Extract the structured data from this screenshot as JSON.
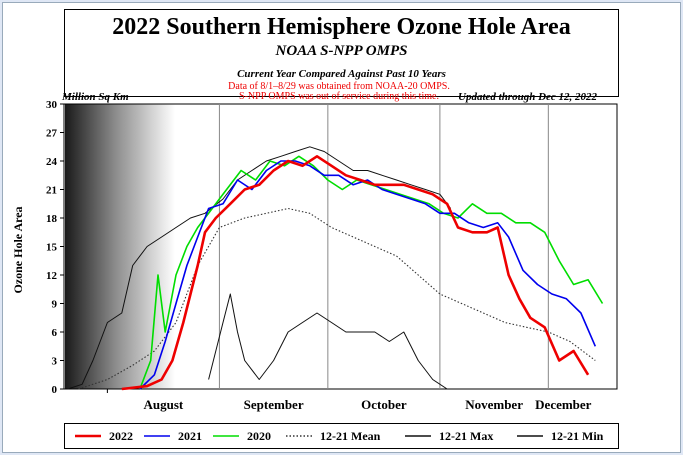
{
  "title": "2022 Southern Hemisphere Ozone Hole Area",
  "subtitle": "NOAA S-NPP OMPS",
  "subtitle2": "Current Year Compared Against Past 10 Years",
  "units_label": "Million Sq Km",
  "updated": "Updated through Dec 12, 2022",
  "note_lines": [
    "Data of 8/1–8/29 was obtained from NOAA-20 OMPS.",
    "S-NPP OMPS was out of service during this time."
  ],
  "colors": {
    "y2022": "#ee0000",
    "y2021": "#0000ee",
    "y2020": "#00dd00",
    "mean": "#333333",
    "max": "#111111",
    "min": "#111111",
    "note": "#ee0000"
  },
  "chart_data": {
    "type": "line",
    "ylabel": "Ozone Hole Area",
    "ylim": [
      0,
      30
    ],
    "y_ticks": [
      0,
      3,
      6,
      9,
      12,
      15,
      18,
      21,
      24,
      27,
      30
    ],
    "x_tick_labels": [
      "August",
      "September",
      "October",
      "November",
      "December"
    ],
    "x_month_starts": [
      "2022-08-01",
      "2022-09-01",
      "2022-10-01",
      "2022-11-01",
      "2022-12-01"
    ],
    "x_range": [
      "2022-07-20",
      "2022-12-20"
    ],
    "series": [
      {
        "name": "2022",
        "points": [
          [
            "2022-08-05",
            0
          ],
          [
            "2022-08-12",
            0.3
          ],
          [
            "2022-08-16",
            1
          ],
          [
            "2022-08-19",
            3
          ],
          [
            "2022-08-22",
            7
          ],
          [
            "2022-08-24",
            10
          ],
          [
            "2022-08-26",
            13
          ],
          [
            "2022-08-28",
            16.5
          ],
          [
            "2022-08-31",
            18
          ],
          [
            "2022-09-04",
            19.5
          ],
          [
            "2022-09-08",
            21
          ],
          [
            "2022-09-12",
            21.5
          ],
          [
            "2022-09-16",
            23
          ],
          [
            "2022-09-20",
            24
          ],
          [
            "2022-09-24",
            23.5
          ],
          [
            "2022-09-28",
            24.5
          ],
          [
            "2022-10-02",
            23.5
          ],
          [
            "2022-10-06",
            22.5
          ],
          [
            "2022-10-10",
            22
          ],
          [
            "2022-10-14",
            21.5
          ],
          [
            "2022-10-18",
            21.5
          ],
          [
            "2022-10-22",
            21.5
          ],
          [
            "2022-10-26",
            21
          ],
          [
            "2022-10-30",
            20.5
          ],
          [
            "2022-11-03",
            19.5
          ],
          [
            "2022-11-06",
            17
          ],
          [
            "2022-11-10",
            16.5
          ],
          [
            "2022-11-14",
            16.5
          ],
          [
            "2022-11-17",
            17
          ],
          [
            "2022-11-20",
            12
          ],
          [
            "2022-11-23",
            9.5
          ],
          [
            "2022-11-26",
            7.5
          ],
          [
            "2022-11-30",
            6.5
          ],
          [
            "2022-12-04",
            3
          ],
          [
            "2022-12-08",
            4
          ],
          [
            "2022-12-12",
            1.5
          ]
        ]
      },
      {
        "name": "2021",
        "points": [
          [
            "2022-08-10",
            0
          ],
          [
            "2022-08-14",
            1.5
          ],
          [
            "2022-08-17",
            5
          ],
          [
            "2022-08-20",
            9
          ],
          [
            "2022-08-23",
            13
          ],
          [
            "2022-08-26",
            16
          ],
          [
            "2022-08-29",
            19
          ],
          [
            "2022-09-02",
            19.5
          ],
          [
            "2022-09-06",
            22
          ],
          [
            "2022-09-10",
            21
          ],
          [
            "2022-09-14",
            23
          ],
          [
            "2022-09-18",
            24
          ],
          [
            "2022-09-22",
            24
          ],
          [
            "2022-09-26",
            23.5
          ],
          [
            "2022-09-30",
            22.5
          ],
          [
            "2022-10-04",
            22.5
          ],
          [
            "2022-10-08",
            21.5
          ],
          [
            "2022-10-12",
            22
          ],
          [
            "2022-10-16",
            21
          ],
          [
            "2022-10-20",
            20.5
          ],
          [
            "2022-10-24",
            20
          ],
          [
            "2022-10-28",
            19.5
          ],
          [
            "2022-11-01",
            18.5
          ],
          [
            "2022-11-05",
            18.5
          ],
          [
            "2022-11-09",
            17.5
          ],
          [
            "2022-11-13",
            17
          ],
          [
            "2022-11-17",
            17.5
          ],
          [
            "2022-11-20",
            16
          ],
          [
            "2022-11-24",
            12.5
          ],
          [
            "2022-11-28",
            11
          ],
          [
            "2022-12-02",
            10
          ],
          [
            "2022-12-06",
            9.5
          ],
          [
            "2022-12-10",
            8
          ],
          [
            "2022-12-14",
            4.5
          ]
        ]
      },
      {
        "name": "2020",
        "points": [
          [
            "2022-08-10",
            0
          ],
          [
            "2022-08-13",
            3
          ],
          [
            "2022-08-15",
            12
          ],
          [
            "2022-08-17",
            6
          ],
          [
            "2022-08-20",
            12
          ],
          [
            "2022-08-23",
            15
          ],
          [
            "2022-08-26",
            17
          ],
          [
            "2022-08-30",
            19
          ],
          [
            "2022-09-03",
            21
          ],
          [
            "2022-09-07",
            23
          ],
          [
            "2022-09-11",
            22
          ],
          [
            "2022-09-15",
            24
          ],
          [
            "2022-09-19",
            23.5
          ],
          [
            "2022-09-23",
            24.5
          ],
          [
            "2022-09-27",
            23.5
          ],
          [
            "2022-10-01",
            22
          ],
          [
            "2022-10-05",
            21
          ],
          [
            "2022-10-09",
            22
          ],
          [
            "2022-10-13",
            21.5
          ],
          [
            "2022-10-17",
            21
          ],
          [
            "2022-10-21",
            20.5
          ],
          [
            "2022-10-25",
            20
          ],
          [
            "2022-10-29",
            19.5
          ],
          [
            "2022-11-02",
            18.5
          ],
          [
            "2022-11-06",
            18
          ],
          [
            "2022-11-10",
            19.5
          ],
          [
            "2022-11-14",
            18.5
          ],
          [
            "2022-11-18",
            18.5
          ],
          [
            "2022-11-22",
            17.5
          ],
          [
            "2022-11-26",
            17.5
          ],
          [
            "2022-11-30",
            16.5
          ],
          [
            "2022-12-04",
            13.5
          ],
          [
            "2022-12-08",
            11
          ],
          [
            "2022-12-12",
            11.5
          ],
          [
            "2022-12-16",
            9
          ]
        ]
      },
      {
        "name": "12-21 Mean",
        "points": [
          [
            "2022-07-24",
            0
          ],
          [
            "2022-08-01",
            1
          ],
          [
            "2022-08-08",
            2.5
          ],
          [
            "2022-08-14",
            4
          ],
          [
            "2022-08-20",
            7
          ],
          [
            "2022-08-26",
            13
          ],
          [
            "2022-09-01",
            17
          ],
          [
            "2022-09-08",
            18
          ],
          [
            "2022-09-14",
            18.5
          ],
          [
            "2022-09-20",
            19
          ],
          [
            "2022-09-26",
            18.5
          ],
          [
            "2022-10-02",
            17
          ],
          [
            "2022-10-08",
            16
          ],
          [
            "2022-10-14",
            15
          ],
          [
            "2022-10-20",
            14
          ],
          [
            "2022-10-26",
            12
          ],
          [
            "2022-11-01",
            10
          ],
          [
            "2022-11-07",
            9
          ],
          [
            "2022-11-13",
            8
          ],
          [
            "2022-11-19",
            7
          ],
          [
            "2022-11-25",
            6.5
          ],
          [
            "2022-12-01",
            6
          ],
          [
            "2022-12-07",
            5
          ],
          [
            "2022-12-14",
            3
          ]
        ]
      },
      {
        "name": "12-21 Max",
        "points": [
          [
            "2022-07-21",
            0
          ],
          [
            "2022-07-25",
            0.5
          ],
          [
            "2022-07-28",
            3
          ],
          [
            "2022-08-01",
            7
          ],
          [
            "2022-08-05",
            8
          ],
          [
            "2022-08-08",
            13
          ],
          [
            "2022-08-12",
            15
          ],
          [
            "2022-08-16",
            16
          ],
          [
            "2022-08-20",
            17
          ],
          [
            "2022-08-24",
            18
          ],
          [
            "2022-08-28",
            18.5
          ],
          [
            "2022-09-02",
            20
          ],
          [
            "2022-09-06",
            22
          ],
          [
            "2022-09-10",
            23
          ],
          [
            "2022-09-14",
            24
          ],
          [
            "2022-09-18",
            24.5
          ],
          [
            "2022-09-22",
            25
          ],
          [
            "2022-09-26",
            25.5
          ],
          [
            "2022-09-30",
            25
          ],
          [
            "2022-10-04",
            24
          ],
          [
            "2022-10-08",
            23
          ],
          [
            "2022-10-12",
            23
          ],
          [
            "2022-10-16",
            22.5
          ],
          [
            "2022-10-20",
            22
          ],
          [
            "2022-10-24",
            21.5
          ],
          [
            "2022-10-28",
            21
          ],
          [
            "2022-11-01",
            20.5
          ],
          [
            "2022-11-04",
            19
          ]
        ]
      },
      {
        "name": "12-21 Min",
        "points": [
          [
            "2022-08-29",
            1
          ],
          [
            "2022-09-02",
            7
          ],
          [
            "2022-09-04",
            10
          ],
          [
            "2022-09-06",
            6
          ],
          [
            "2022-09-08",
            3
          ],
          [
            "2022-09-12",
            1
          ],
          [
            "2022-09-16",
            3
          ],
          [
            "2022-09-20",
            6
          ],
          [
            "2022-09-24",
            7
          ],
          [
            "2022-09-28",
            8
          ],
          [
            "2022-10-02",
            7
          ],
          [
            "2022-10-06",
            6
          ],
          [
            "2022-10-10",
            6
          ],
          [
            "2022-10-14",
            6
          ],
          [
            "2022-10-18",
            5
          ],
          [
            "2022-10-22",
            6
          ],
          [
            "2022-10-26",
            3
          ],
          [
            "2022-10-30",
            1
          ],
          [
            "2022-11-03",
            0
          ]
        ]
      }
    ]
  }
}
